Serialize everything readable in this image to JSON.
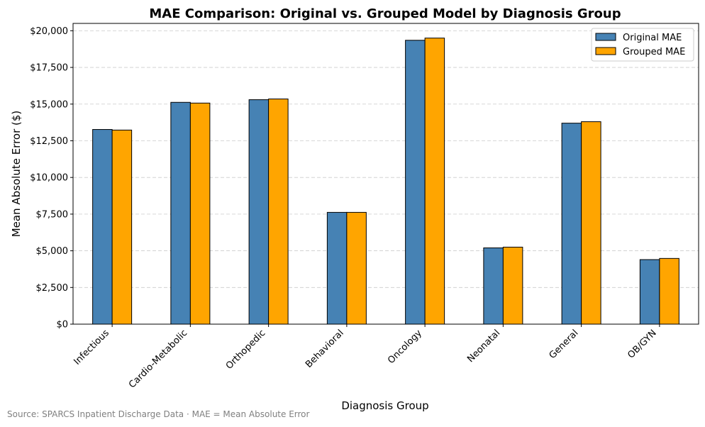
{
  "chart_data": {
    "type": "bar",
    "title": "MAE Comparison: Original vs. Grouped Model by Diagnosis Group",
    "xlabel": "Diagnosis Group",
    "ylabel": "Mean Absolute Error ($)",
    "categories": [
      "Infectious",
      "Cardio-Metabolic",
      "Orthopedic",
      "Behavioral",
      "Oncology",
      "Neonatal",
      "General",
      "OB/GYN"
    ],
    "series": [
      {
        "name": "Original MAE",
        "color": "#4682b4",
        "values": [
          13270,
          15120,
          15300,
          7620,
          19350,
          5200,
          13700,
          4400
        ]
      },
      {
        "name": "Grouped MAE",
        "color": "#ffa500",
        "values": [
          13230,
          15070,
          15350,
          7620,
          19500,
          5250,
          13800,
          4480
        ]
      }
    ],
    "ylim": [
      0,
      20500
    ],
    "yticks": [
      0,
      2500,
      5000,
      7500,
      10000,
      12500,
      15000,
      17500,
      20000
    ],
    "ytick_labels": [
      "$0",
      "$2,500",
      "$5,000",
      "$7,500",
      "$10,000",
      "$12,500",
      "$15,000",
      "$17,500",
      "$20,000"
    ],
    "grid": "y-dashed",
    "legend": "top-right"
  },
  "footer": {
    "source": "Source: SPARCS Inpatient Discharge Data · MAE = Mean Absolute Error"
  }
}
